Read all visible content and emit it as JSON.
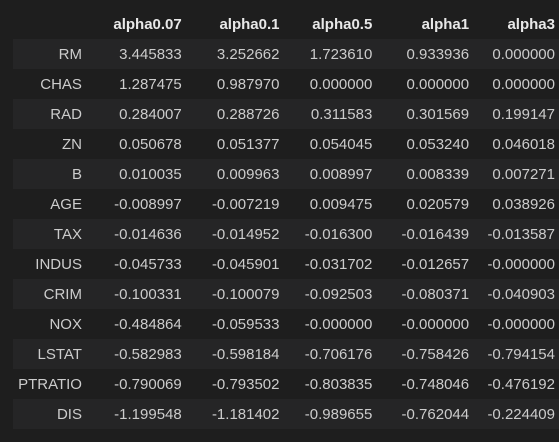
{
  "table": {
    "columns": [
      "alpha0.07",
      "alpha0.1",
      "alpha0.5",
      "alpha1",
      "alpha3"
    ],
    "rows": [
      {
        "index": "RM",
        "values": [
          "3.445833",
          "3.252662",
          "1.723610",
          "0.933936",
          "0.000000"
        ]
      },
      {
        "index": "CHAS",
        "values": [
          "1.287475",
          "0.987970",
          "0.000000",
          "0.000000",
          "0.000000"
        ]
      },
      {
        "index": "RAD",
        "values": [
          "0.284007",
          "0.288726",
          "0.311583",
          "0.301569",
          "0.199147"
        ]
      },
      {
        "index": "ZN",
        "values": [
          "0.050678",
          "0.051377",
          "0.054045",
          "0.053240",
          "0.046018"
        ]
      },
      {
        "index": "B",
        "values": [
          "0.010035",
          "0.009963",
          "0.008997",
          "0.008339",
          "0.007271"
        ]
      },
      {
        "index": "AGE",
        "values": [
          "-0.008997",
          "-0.007219",
          "0.009475",
          "0.020579",
          "0.038926"
        ]
      },
      {
        "index": "TAX",
        "values": [
          "-0.014636",
          "-0.014952",
          "-0.016300",
          "-0.016439",
          "-0.013587"
        ]
      },
      {
        "index": "INDUS",
        "values": [
          "-0.045733",
          "-0.045901",
          "-0.031702",
          "-0.012657",
          "-0.000000"
        ]
      },
      {
        "index": "CRIM",
        "values": [
          "-0.100331",
          "-0.100079",
          "-0.092503",
          "-0.080371",
          "-0.040903"
        ]
      },
      {
        "index": "NOX",
        "values": [
          "-0.484864",
          "-0.059533",
          "-0.000000",
          "-0.000000",
          "-0.000000"
        ]
      },
      {
        "index": "LSTAT",
        "values": [
          "-0.582983",
          "-0.598184",
          "-0.706176",
          "-0.758426",
          "-0.794154"
        ]
      },
      {
        "index": "PTRATIO",
        "values": [
          "-0.790069",
          "-0.793502",
          "-0.803835",
          "-0.748046",
          "-0.476192"
        ]
      },
      {
        "index": "DIS",
        "values": [
          "-1.199548",
          "-1.181402",
          "-0.989655",
          "-0.762044",
          "-0.224409"
        ]
      }
    ]
  },
  "colors": {
    "background": "#1e1e1e",
    "row_stripe": "#252526",
    "text": "#cccccc",
    "header_text": "#e8e8e8"
  }
}
